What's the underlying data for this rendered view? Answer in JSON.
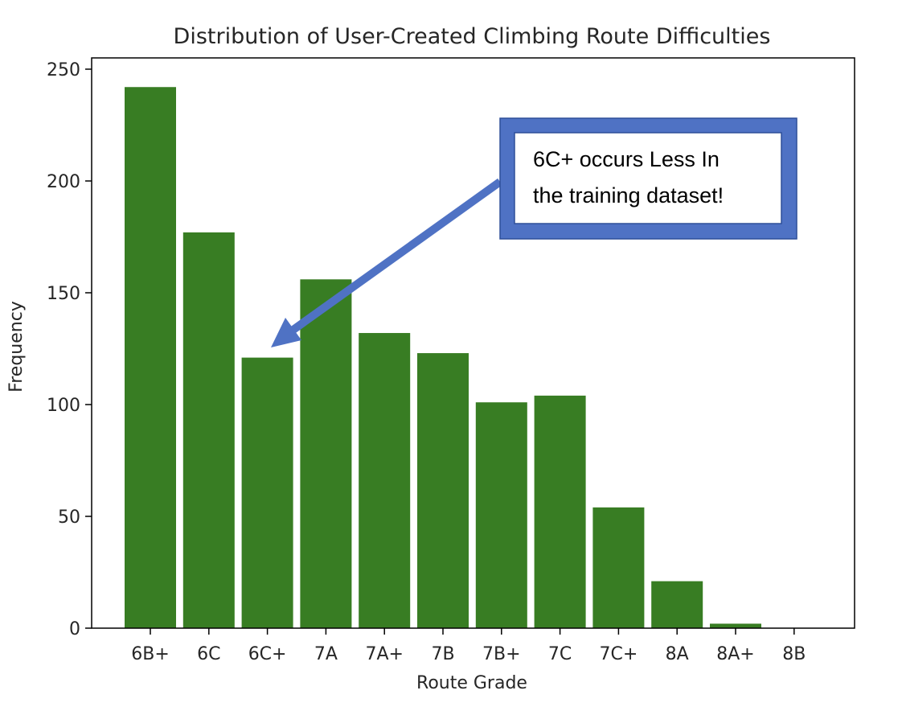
{
  "chart_data": {
    "type": "bar",
    "title": "Distribution of User-Created Climbing Route Difficulties",
    "xlabel": "Route Grade",
    "ylabel": "Frequency",
    "categories": [
      "6B+",
      "6C",
      "6C+",
      "7A",
      "7A+",
      "7B",
      "7B+",
      "7C",
      "7C+",
      "8A",
      "8A+",
      "8B"
    ],
    "values": [
      242,
      177,
      121,
      156,
      132,
      123,
      101,
      104,
      54,
      21,
      2,
      0
    ],
    "ylim": [
      0,
      255
    ],
    "yticks": [
      0,
      50,
      100,
      150,
      200,
      250
    ],
    "grid": false,
    "legend": "none",
    "bar_color": "#387d23",
    "annotation": {
      "lines": [
        "6C+ occurs Less In",
        "the training dataset!"
      ],
      "target_category": "6C+",
      "box_border_color": "#4f72c4",
      "arrow_color": "#4f72c4"
    }
  }
}
